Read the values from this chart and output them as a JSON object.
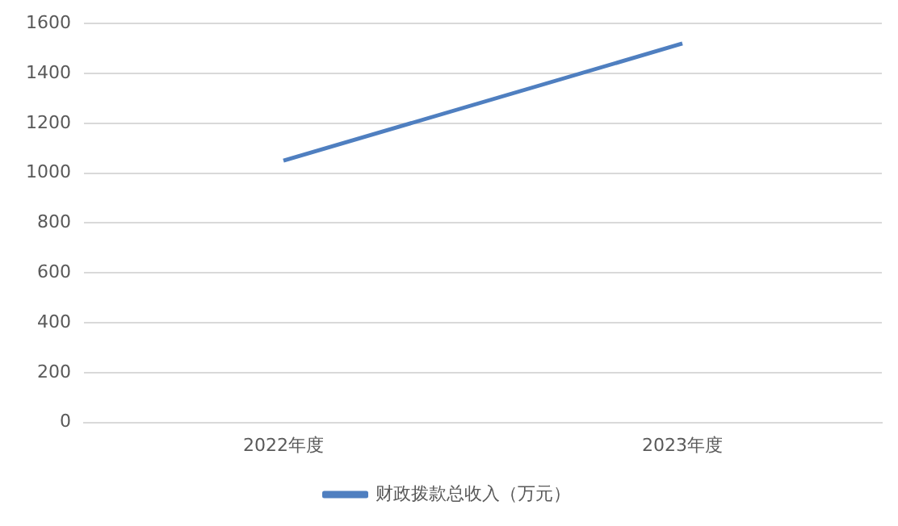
{
  "chart_data": {
    "type": "line",
    "categories": [
      "2022年度",
      "2023年度"
    ],
    "series": [
      {
        "name": "财政拨款总收入（万元）",
        "color": "#4f7fc0",
        "values": [
          1050,
          1520
        ]
      }
    ],
    "ylim": [
      0,
      1600
    ],
    "yticks": [
      0,
      200,
      400,
      600,
      800,
      1000,
      1200,
      1400,
      1600
    ],
    "grid": "y",
    "legend": "bottom",
    "marker": "none",
    "line_style": "solid"
  }
}
